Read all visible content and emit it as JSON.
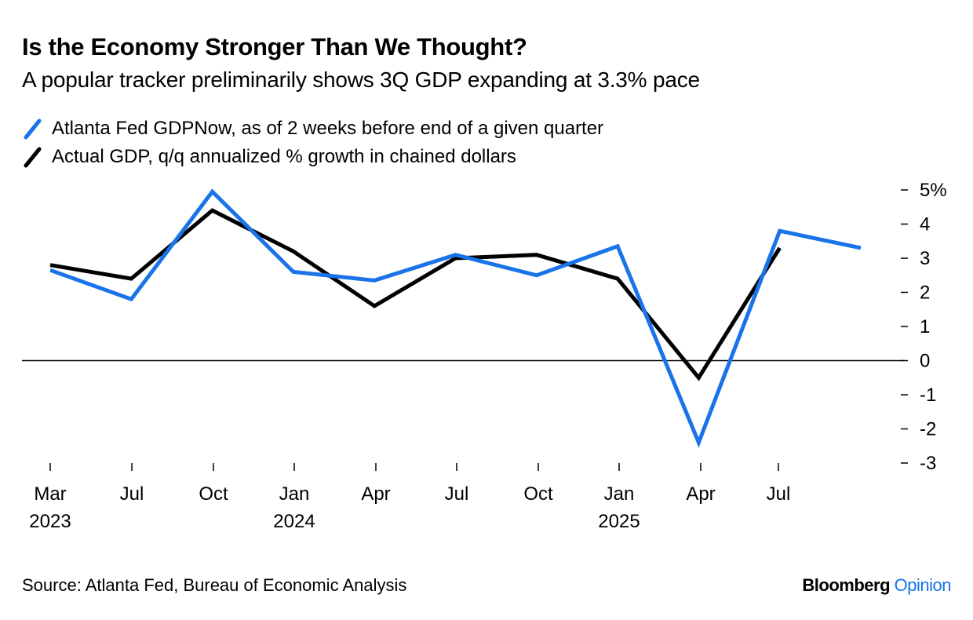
{
  "title": "Is the Economy Stronger Than We Thought?",
  "subtitle": "A popular tracker preliminarily shows 3Q GDP expanding at 3.3% pace",
  "legend": [
    {
      "label": "Atlanta Fed GDPNow, as of 2 weeks before end of a given quarter",
      "color": "#1a73e8"
    },
    {
      "label": "Actual GDP, q/q annualized % growth in chained dollars",
      "color": "#000000"
    }
  ],
  "footer": {
    "source": "Source: Atlanta Fed, Bureau of Economic Analysis",
    "brand_main": "Bloomberg",
    "brand_accent": "Opinion"
  },
  "chart_data": {
    "type": "line",
    "title": "Is the Economy Stronger Than We Thought?",
    "subtitle": "A popular tracker preliminarily shows 3Q GDP expanding at 3.3% pace",
    "xlabel": "",
    "ylabel": "",
    "ylim": [
      -3,
      5
    ],
    "yticks": [
      5,
      4,
      3,
      2,
      1,
      0,
      -1,
      -2,
      -3
    ],
    "ytick_labels": [
      "5%",
      "4",
      "3",
      "2",
      "1",
      "0",
      "-1",
      "-2",
      "-3"
    ],
    "x": [
      "2023-03",
      "2023-06",
      "2023-09",
      "2023-12",
      "2024-03",
      "2024-06",
      "2024-09",
      "2024-12",
      "2025-03",
      "2025-06",
      "2025-09"
    ],
    "xticks": [
      {
        "month": "Mar",
        "year": "2023"
      },
      {
        "month": "Jul",
        "year": ""
      },
      {
        "month": "Oct",
        "year": ""
      },
      {
        "month": "Jan",
        "year": "2024"
      },
      {
        "month": "Apr",
        "year": ""
      },
      {
        "month": "Jul",
        "year": ""
      },
      {
        "month": "Oct",
        "year": ""
      },
      {
        "month": "Jan",
        "year": "2025"
      },
      {
        "month": "Apr",
        "year": ""
      },
      {
        "month": "Jul",
        "year": ""
      }
    ],
    "series": [
      {
        "name": "Atlanta Fed GDPNow, as of 2 weeks before end of a given quarter",
        "color": "#1a73e8",
        "values": [
          2.65,
          1.8,
          4.95,
          2.6,
          2.35,
          3.1,
          2.5,
          3.35,
          -2.4,
          3.8,
          3.3
        ]
      },
      {
        "name": "Actual GDP, q/q annualized % growth in chained dollars",
        "color": "#000000",
        "values": [
          2.8,
          2.4,
          4.4,
          3.2,
          1.6,
          3.0,
          3.1,
          2.4,
          -0.5,
          3.3,
          null
        ]
      }
    ],
    "zero_line": true,
    "grid": false,
    "legend_position": "top-left"
  }
}
